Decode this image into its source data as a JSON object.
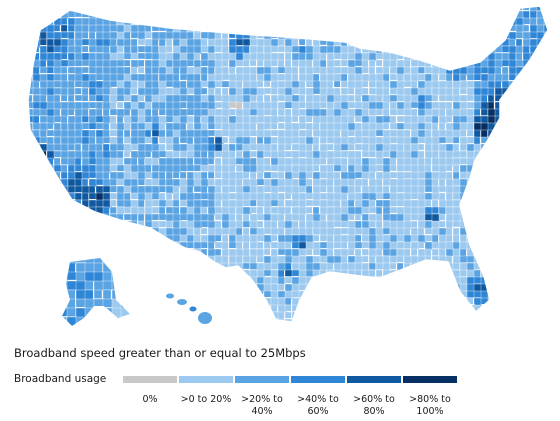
{
  "title": "Broadband speed greater than or equal to 25Mbps",
  "legend": {
    "label": "Broadband usage",
    "classes": [
      {
        "label": "0%",
        "color": "#c8c8c8"
      },
      {
        "label": ">0 to 20%",
        "color": "#9cc9ef"
      },
      {
        "label": ">20% to 40%",
        "color": "#5ba4e3"
      },
      {
        "label": ">40% to 60%",
        "color": "#2f86d6"
      },
      {
        "label": ">60% to 80%",
        "color": "#10589f"
      },
      {
        "label": ">80% to 100%",
        "color": "#062f63"
      }
    ]
  },
  "map": {
    "region": "United States counties",
    "border_color": "#ffffff"
  }
}
